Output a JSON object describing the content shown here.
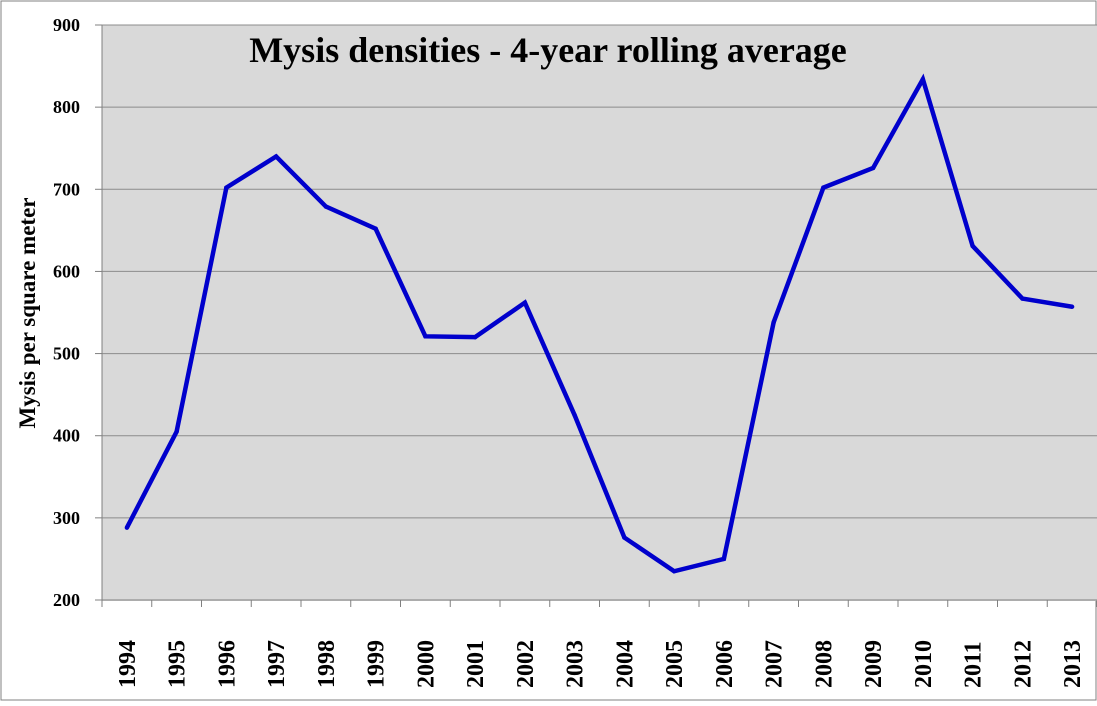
{
  "chart_data": {
    "type": "line",
    "title": "Mysis densities - 4-year rolling average",
    "xlabel": "",
    "ylabel": "Mysis per square meter",
    "categories": [
      "1994",
      "1995",
      "1996",
      "1997",
      "1998",
      "1999",
      "2000",
      "2001",
      "2002",
      "2003",
      "2004",
      "2005",
      "2006",
      "2007",
      "2008",
      "2009",
      "2010",
      "2011",
      "2012",
      "2013"
    ],
    "series": [
      {
        "name": "",
        "values": [
          288,
          405,
          702,
          740,
          679,
          652,
          521,
          520,
          562,
          425,
          276,
          235,
          250,
          538,
          702,
          726,
          834,
          631,
          567,
          557
        ]
      }
    ],
    "ylim": [
      200,
      900
    ],
    "yticks": [
      "200",
      "300",
      "400",
      "500",
      "600",
      "700",
      "800",
      "900"
    ],
    "grid": true,
    "legend": "none",
    "colors": {
      "line": "#0000cc",
      "plot_background": "#d9d9d9",
      "gridline": "#8c8c8c",
      "axis": "#808080"
    }
  }
}
